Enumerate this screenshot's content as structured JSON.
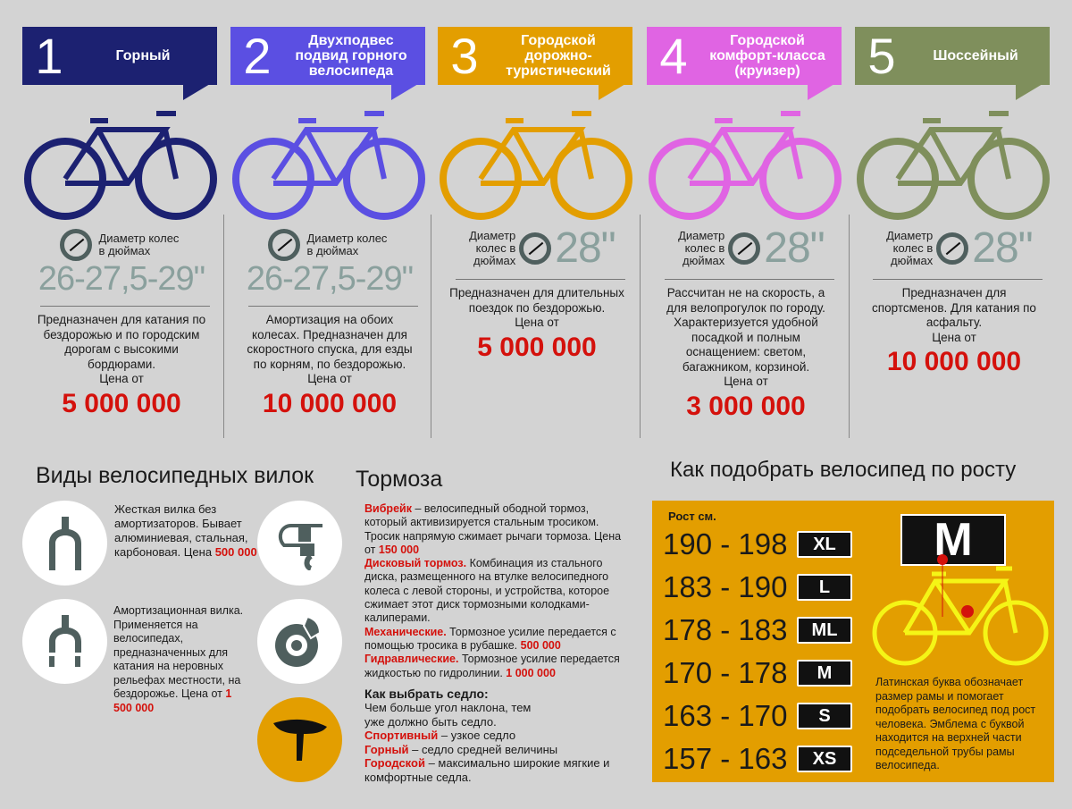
{
  "colors": {
    "c1": "#1c2171",
    "c2": "#5b4fe2",
    "c3": "#e39e00",
    "c4": "#e064e3",
    "c5": "#7f8f5c",
    "price": "#d4110c"
  },
  "bikes": [
    {
      "num": "1",
      "title": "Горный",
      "diam_label": "Диаметр колес в дюймах",
      "diam": "26-27,5-29\"",
      "desc": "Предназначен для катания по бездорожью и по городским дорогам с высокими бордюрами.",
      "price_label": "Цена  от",
      "price": "5 000 000"
    },
    {
      "num": "2",
      "title": "Двухподвес подвид горного велосипеда",
      "diam_label": "Диаметр колес в дюймах",
      "diam": "26-27,5-29\"",
      "desc": "Амортизация на обоих колесах. Предназначен для скоростного спуска, для езды по корням, по бездорожью.",
      "price_label": "Цена  от",
      "price": "10 000 000"
    },
    {
      "num": "3",
      "title": "Городской дорожно-туристический",
      "diam_label": "Диаметр колес в дюймах",
      "diam": "28\"",
      "desc": "Предназначен для длительных поездок по бездорожью.",
      "price_label": "Цена  от",
      "price": "5 000 000"
    },
    {
      "num": "4",
      "title": "Городской комфорт-класса (круизер)",
      "diam_label": "Диаметр колес в дюймах",
      "diam": "28\"",
      "desc": "Рассчитан не на скорость, а для велопрогулок по городу. Характеризуется удобной посадкой и полным оснащением:  светом, багажником, корзиной.",
      "price_label": "Цена  от",
      "price": "3 000 000"
    },
    {
      "num": "5",
      "title": "Шоссейный",
      "diam_label": "Диаметр колес в дюймах",
      "diam": "28\"",
      "desc": "Предназначен для спортсменов. Для катания по асфальту.",
      "price_label": "Цена  от",
      "price": "10 000 000"
    }
  ],
  "forks": {
    "title": "Виды велосипедных вилок",
    "rigid": {
      "text": "Жесткая вилка без амортизаторов. Бывает алюминиевая, стальная, карбоновая.",
      "price_label": "Цена",
      "price": "500 000"
    },
    "suspension": {
      "text": "Амортизационная вилка. Применяется на велосипедах, предназначенных для катания на неровных рельефах местности, на бездорожье.",
      "price_label": "Цена от",
      "price": "1 500 000"
    }
  },
  "brakes": {
    "title": "Тормоза",
    "vbrake": {
      "name": "Вибрейк",
      "text": " – велосипедный ободной тормоз, который активизируется стальным тросиком. Тросик напрямую сжимает рычаги тормоза. Цена от ",
      "price": "150 000"
    },
    "disc": {
      "name": "Дисковый тормоз.",
      "text": " Комбинация из стального диска, размещенного на втулке велосипедного колеса с левой стороны, и устройства, которое сжимает этот диск тормозными колодками-калиперами."
    },
    "mech": {
      "name": "Механические.",
      "text": " Тормозное усилие передается с помощью тросика в рубашке. ",
      "price": "500 000"
    },
    "hydr": {
      "name": "Гидравлические.",
      "text": " Тормозное усилие передается жидкостью по гидролинии. ",
      "price": "1 000 000"
    }
  },
  "saddle": {
    "title": "Как выбрать седло:",
    "intro": "Чем больше угол наклона, тем уже должно быть седло.",
    "items": [
      {
        "name": "Спортивный",
        "text": " – узкое седло"
      },
      {
        "name": "Горный",
        "text": " – седло средней величины"
      },
      {
        "name": "Городской",
        "text": " – максимально широкие мягкие и комфортные седла."
      }
    ]
  },
  "sizing": {
    "title": "Как подобрать велосипед по росту",
    "col_label": "Рост см.",
    "rows": [
      {
        "range": "190 - 198",
        "size": "XL"
      },
      {
        "range": "183 - 190",
        "size": "L"
      },
      {
        "range": "178 - 183",
        "size": "ML"
      },
      {
        "range": "170 - 178",
        "size": "M"
      },
      {
        "range": "163 - 170",
        "size": "S"
      },
      {
        "range": "157 - 163",
        "size": "XS"
      }
    ],
    "emblem": "M",
    "note": "Латинская буква обозначает размер рамы и помогает подобрать велосипед под рост человека. Эмблема с буквой находится на верхней части подседельной трубы рамы велосипеда."
  }
}
